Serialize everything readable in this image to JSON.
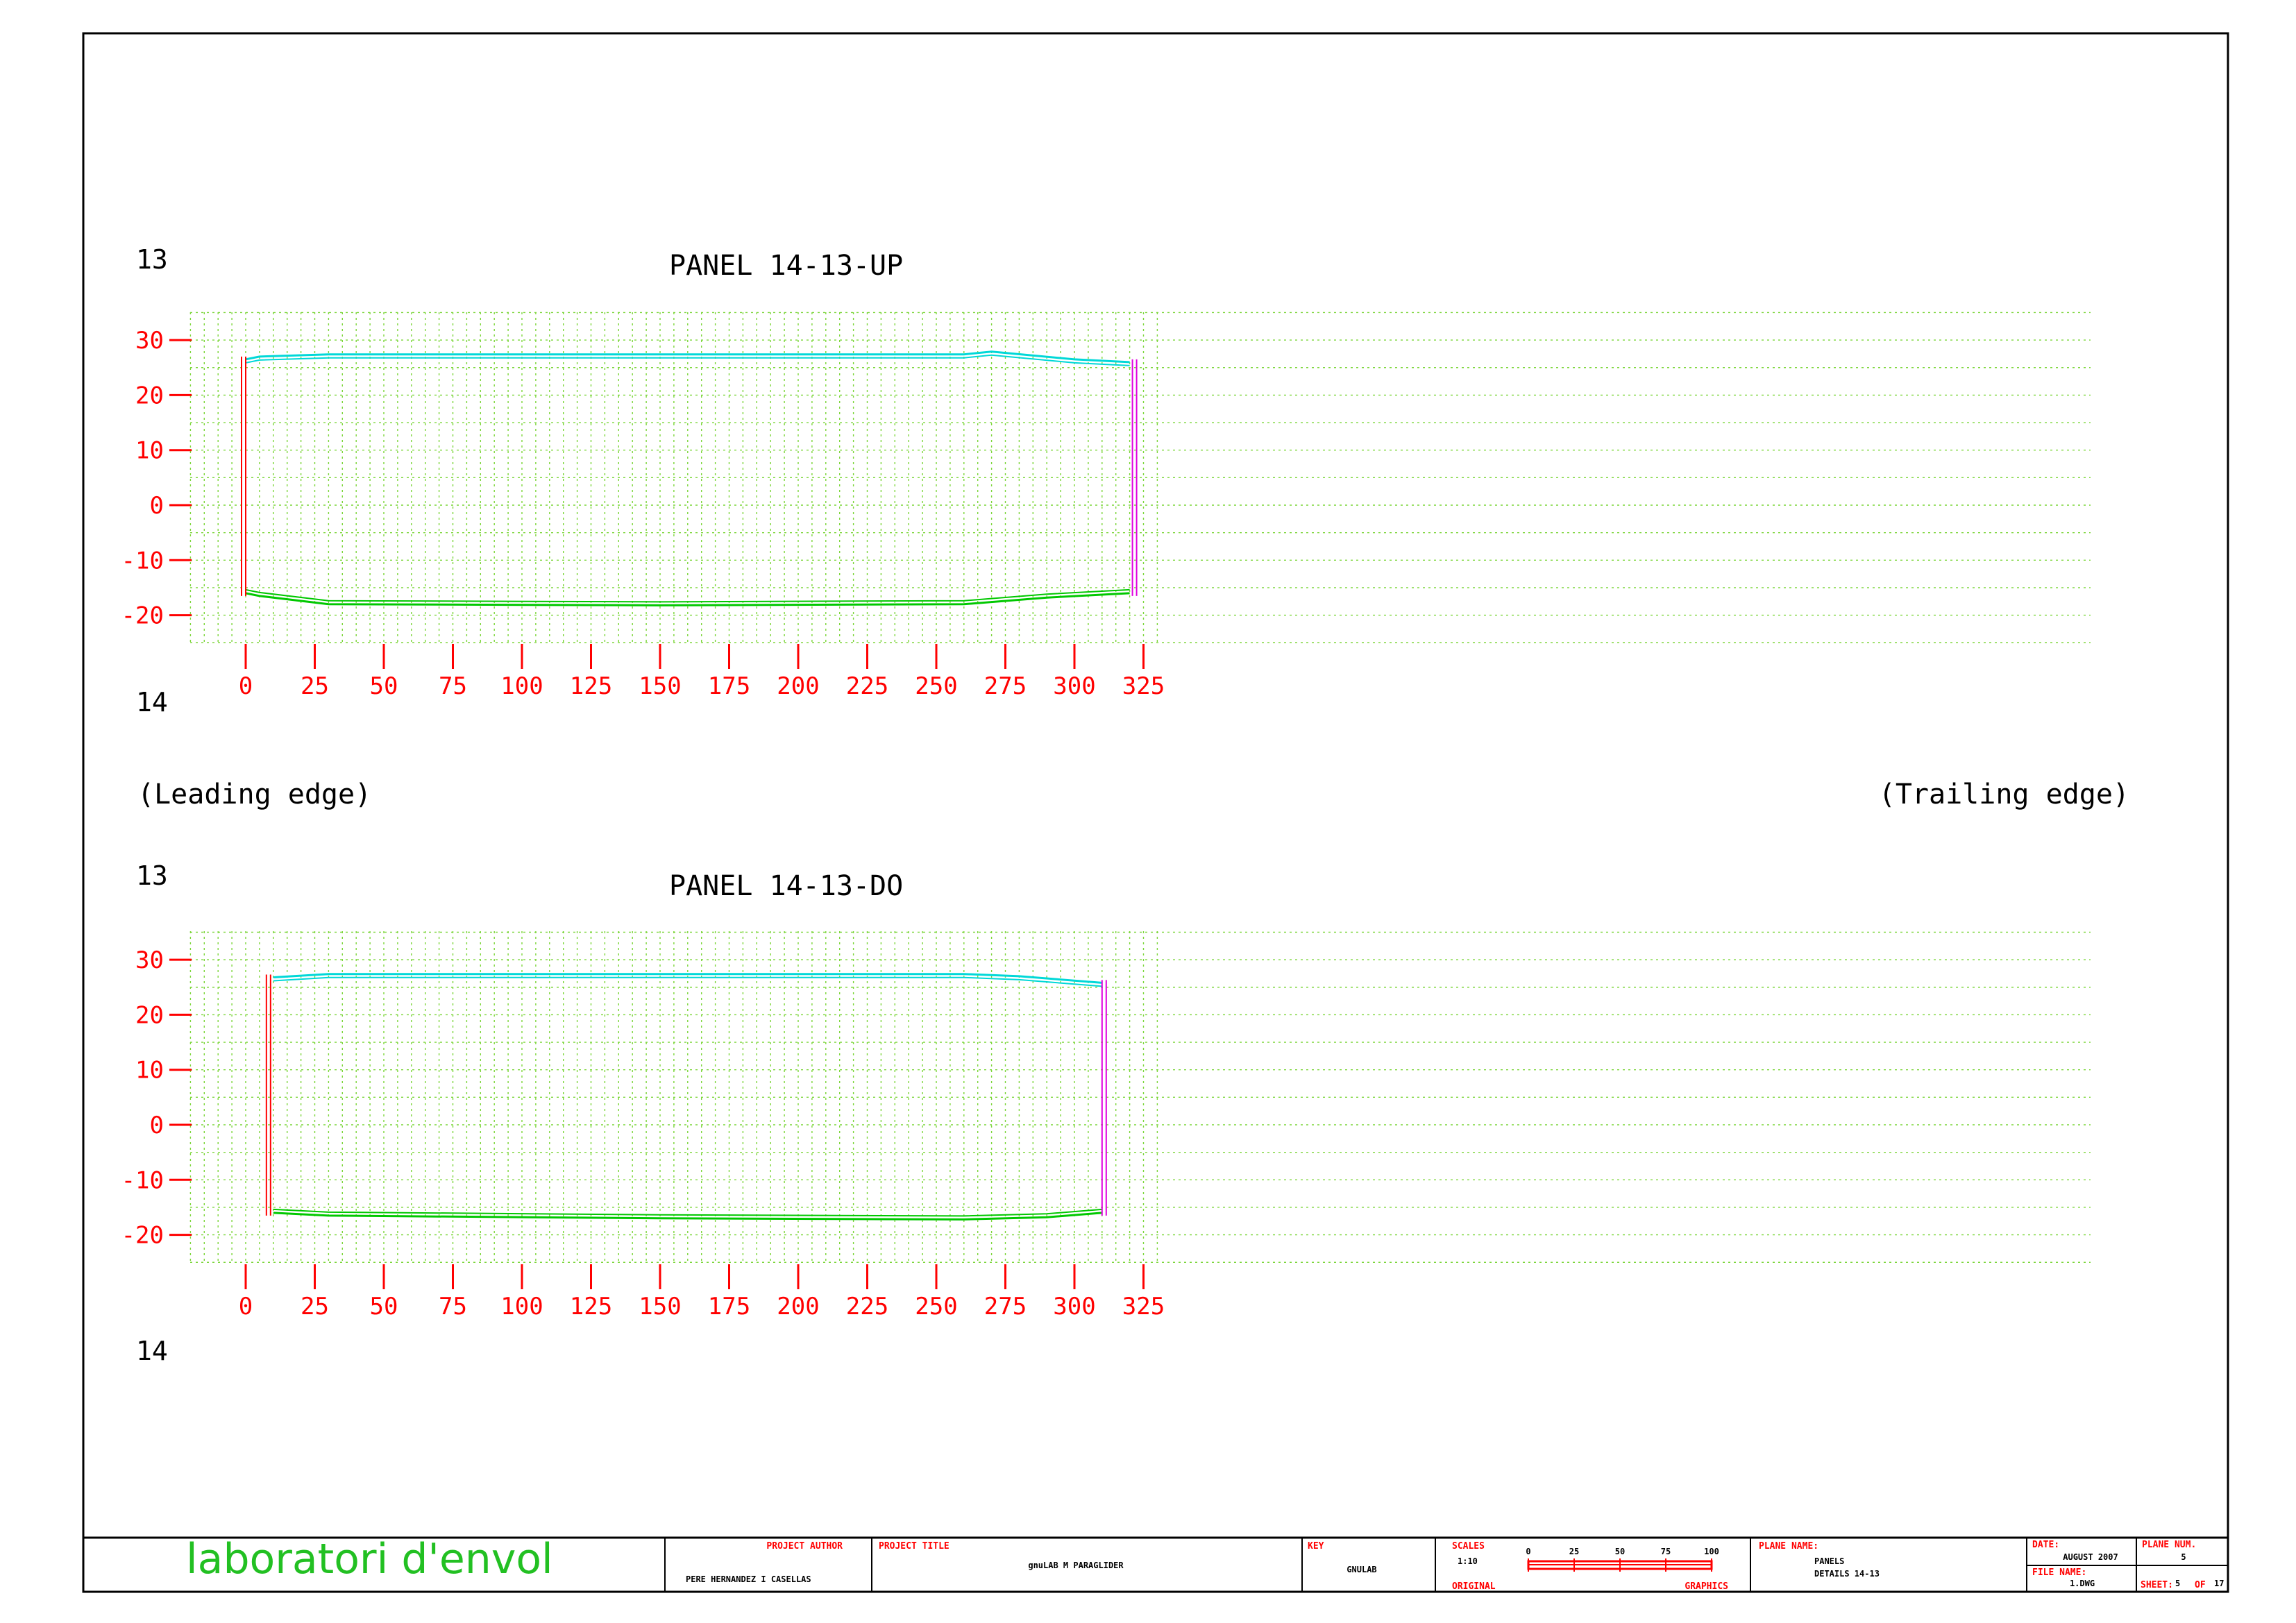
{
  "edges": {
    "leading": "(Leading edge)",
    "trailing": "(Trailing edge)"
  },
  "panels": [
    {
      "title": "PANEL 14-13-UP",
      "rib_top": "13",
      "rib_bottom": "14",
      "x_ticks": [
        "0",
        "25",
        "50",
        "75",
        "100",
        "125",
        "150",
        "175",
        "200",
        "225",
        "250",
        "275",
        "300",
        "325"
      ],
      "y_ticks": [
        "30",
        "20",
        "10",
        "0",
        "-10",
        "-20"
      ],
      "outline": {
        "top_x": [
          0,
          5,
          30,
          150,
          260,
          270,
          300,
          320
        ],
        "top_y": [
          26.5,
          27,
          27.4,
          27.4,
          27.4,
          27.9,
          26.5,
          26
        ],
        "bottom_x": [
          0,
          5,
          30,
          150,
          260,
          290,
          320
        ],
        "bottom_y": [
          -16,
          -16.5,
          -18,
          -18.2,
          -18,
          -16.8,
          -16
        ],
        "left_x": 0,
        "right_x": 321
      }
    },
    {
      "title": "PANEL 14-13-DO",
      "rib_top": "13",
      "rib_bottom": "14",
      "x_ticks": [
        "0",
        "25",
        "50",
        "75",
        "100",
        "125",
        "150",
        "175",
        "200",
        "225",
        "250",
        "275",
        "300",
        "325"
      ],
      "y_ticks": [
        "30",
        "20",
        "10",
        "0",
        "-10",
        "-20"
      ],
      "outline": {
        "top_x": [
          10,
          30,
          150,
          260,
          280,
          310
        ],
        "top_y": [
          26.8,
          27.4,
          27.4,
          27.4,
          27,
          25.8
        ],
        "bottom_x": [
          10,
          30,
          150,
          260,
          290,
          310
        ],
        "bottom_y": [
          -16,
          -16.5,
          -17,
          -17.2,
          -16.8,
          -16
        ],
        "left_x": 9,
        "right_x": 310
      }
    }
  ],
  "title_block": {
    "logo": "laboratori d'envol",
    "project_author_label": "PROJECT AUTHOR",
    "project_author": "PERE HERNANDEZ I CASELLAS",
    "project_title_label": "PROJECT TITLE",
    "project_title": "gnuLAB M PARAGLIDER",
    "key_label": "KEY",
    "key": "GNULAB",
    "scales_label": "SCALES",
    "scale": "1:10",
    "original_label": "ORIGINAL",
    "graphics_label": "GRAPHICS",
    "scale_bar_ticks": [
      "0",
      "25",
      "50",
      "75",
      "100"
    ],
    "plane_name_label": "PLANE NAME:",
    "plane_name_1": "PANELS",
    "plane_name_2": "DETAILS 14-13",
    "date_label": "DATE:",
    "date": "AUGUST 2007",
    "file_name_label": "FILE NAME:",
    "file_name": "1.DWG",
    "plane_num_label": "PLANE NUM.",
    "plane_num": "5",
    "sheet_label": "SHEET:",
    "sheet_num": "5",
    "sheet_of": "OF",
    "sheet_total": "17"
  },
  "colors": {
    "axis": "#ff0000",
    "grid": "#7cd63a",
    "top_edge": "#00d8d8",
    "bottom_edge": "#00c800",
    "leading_seam": "#ff0000",
    "trailing_seam": "#e000e0",
    "logo": "#22c022"
  }
}
